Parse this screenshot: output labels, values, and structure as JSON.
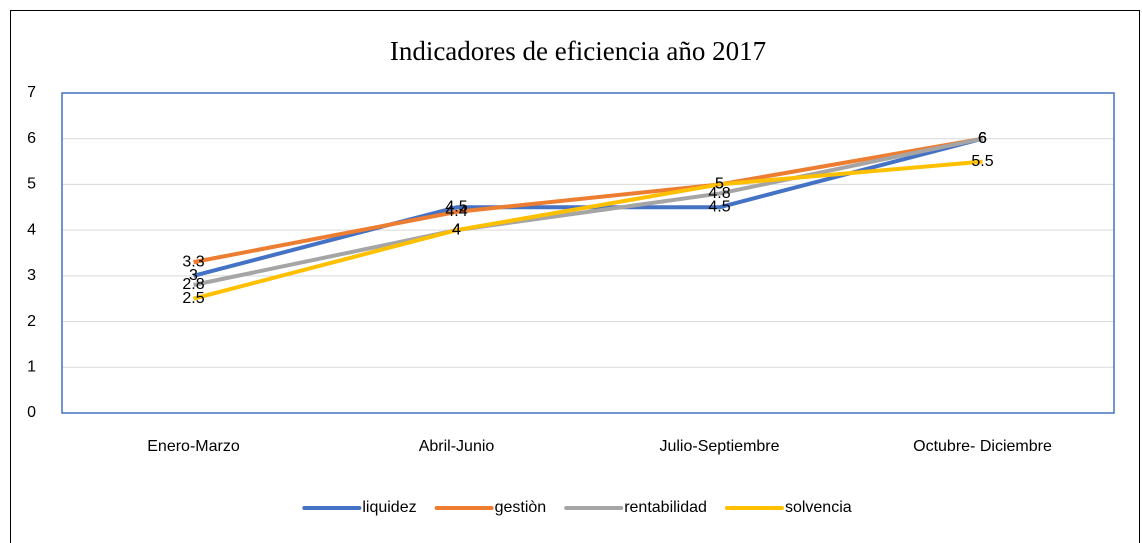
{
  "chart_data": {
    "type": "line",
    "title": "Indicadores de eficiencia año 2017",
    "categories": [
      "Enero-Marzo",
      "Abril-Junio",
      "Julio-Septiembre",
      "Octubre- Diciembre"
    ],
    "series": [
      {
        "name": "liquidez",
        "color": "#4472c4",
        "values": [
          3,
          4.5,
          4.5,
          6
        ]
      },
      {
        "name": "gestiòn",
        "color": "#ed7d31",
        "values": [
          3.3,
          4.4,
          5,
          6
        ]
      },
      {
        "name": "rentabilidad",
        "color": "#a5a5a5",
        "values": [
          2.8,
          4,
          4.8,
          6
        ]
      },
      {
        "name": "solvencia",
        "color": "#ffc000",
        "values": [
          2.5,
          4,
          5,
          5.5
        ]
      }
    ],
    "ylim": [
      0,
      7
    ],
    "yticks": [
      0,
      1,
      2,
      3,
      4,
      5,
      6,
      7
    ],
    "grid": true,
    "legend": "bottom"
  }
}
